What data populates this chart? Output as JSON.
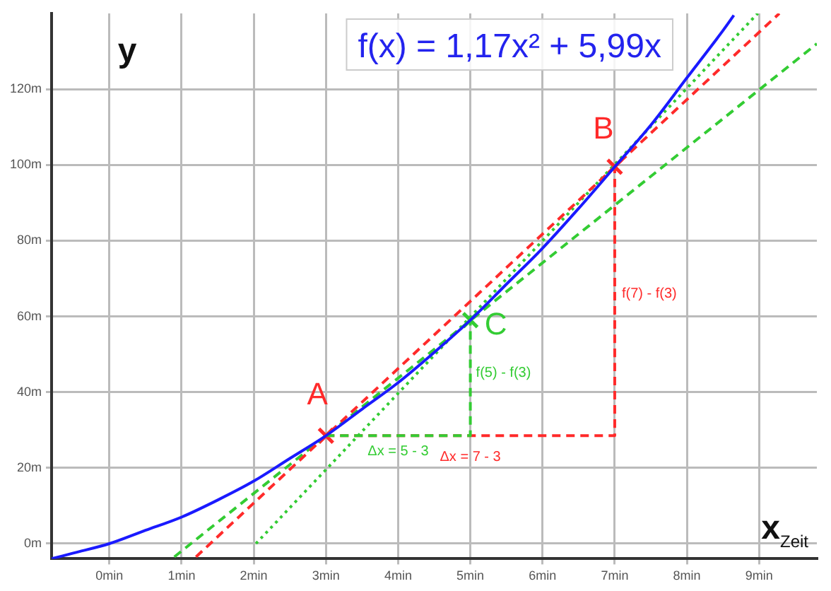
{
  "chart_data": {
    "type": "line",
    "title": "f(x) = 1,17x² + 5,99x",
    "xlabel": "x$_{Zeit}$",
    "ylabel": "y",
    "xlim": [
      -0.8,
      9.8
    ],
    "ylim": [
      -4,
      140
    ],
    "xticks": [
      {
        "value": 0,
        "label": "0min"
      },
      {
        "value": 1,
        "label": "1min"
      },
      {
        "value": 2,
        "label": "2min"
      },
      {
        "value": 3,
        "label": "3min"
      },
      {
        "value": 4,
        "label": "4min"
      },
      {
        "value": 5,
        "label": "5min"
      },
      {
        "value": 6,
        "label": "6min"
      },
      {
        "value": 7,
        "label": "7min"
      },
      {
        "value": 8,
        "label": "8min"
      },
      {
        "value": 9,
        "label": "9min"
      }
    ],
    "yticks": [
      {
        "value": 0,
        "label": "0m"
      },
      {
        "value": 20,
        "label": "20m"
      },
      {
        "value": 40,
        "label": "40m"
      },
      {
        "value": 60,
        "label": "60m"
      },
      {
        "value": 80,
        "label": "80m"
      },
      {
        "value": 100,
        "label": "100m"
      },
      {
        "value": 120,
        "label": "120m"
      }
    ],
    "grid": true,
    "legend": false,
    "series": [
      {
        "type": "line",
        "color": "#1a1aff",
        "line_style": "solid",
        "x": [
          -0.8,
          -0.5,
          0,
          0.5,
          1,
          1.5,
          2,
          2.5,
          3,
          3.5,
          4,
          4.5,
          5,
          5.5,
          6,
          6.5,
          7,
          7.5,
          8,
          8.5,
          8.65
        ],
        "values": [
          -4,
          -2.5,
          0,
          3.5,
          7,
          11.5,
          16.5,
          22.5,
          28.5,
          35.5,
          42.5,
          50.5,
          59,
          68.5,
          78,
          88.5,
          99.5,
          110.5,
          123,
          135.5,
          139.5
        ]
      },
      {
        "type": "line",
        "color": "#ff2a2a",
        "line_style": "dashed",
        "x": [
          1.2,
          9.28
        ],
        "values": [
          -3.5,
          140
        ]
      },
      {
        "type": "line",
        "color": "#33cc33",
        "line_style": "dashed",
        "x": [
          0.9,
          9.8
        ],
        "values": [
          -3.5,
          132
        ]
      },
      {
        "type": "line",
        "color": "#33cc33",
        "line_style": "dotted",
        "x": [
          2.03,
          8.98
        ],
        "values": [
          0,
          140
        ]
      },
      {
        "type": "line",
        "color": "#33cc33",
        "line_style": "dashed",
        "x": [
          3,
          5,
          5
        ],
        "values": [
          28.5,
          28.5,
          59
        ]
      },
      {
        "type": "line",
        "color": "#ff2a2a",
        "line_style": "dashed",
        "x": [
          3,
          7,
          7
        ],
        "values": [
          28.5,
          28.5,
          99.5
        ]
      },
      {
        "type": "scatter",
        "color": "#ff2a2a",
        "marker": "cross",
        "x": [
          3,
          7
        ],
        "values": [
          28.5,
          99.5
        ]
      },
      {
        "type": "scatter",
        "color": "#33cc33",
        "marker": "cross",
        "x": [
          5
        ],
        "values": [
          59
        ]
      }
    ],
    "annotations": [
      {
        "text": "A",
        "x": 3,
        "y": 28.5
      },
      {
        "text": "B",
        "x": 7,
        "y": 99.5
      },
      {
        "text": "C",
        "x": 5,
        "y": 59
      },
      {
        "text": "Δx = 5 - 3",
        "x": 4,
        "y": 28.5
      },
      {
        "text": "Δx = 7 - 3",
        "x": 5,
        "y": 28.5
      },
      {
        "text": "f(5) - f(3)",
        "x": 5,
        "y": 44
      },
      {
        "text": "f(7) - f(3)",
        "x": 7,
        "y": 65
      }
    ]
  }
}
